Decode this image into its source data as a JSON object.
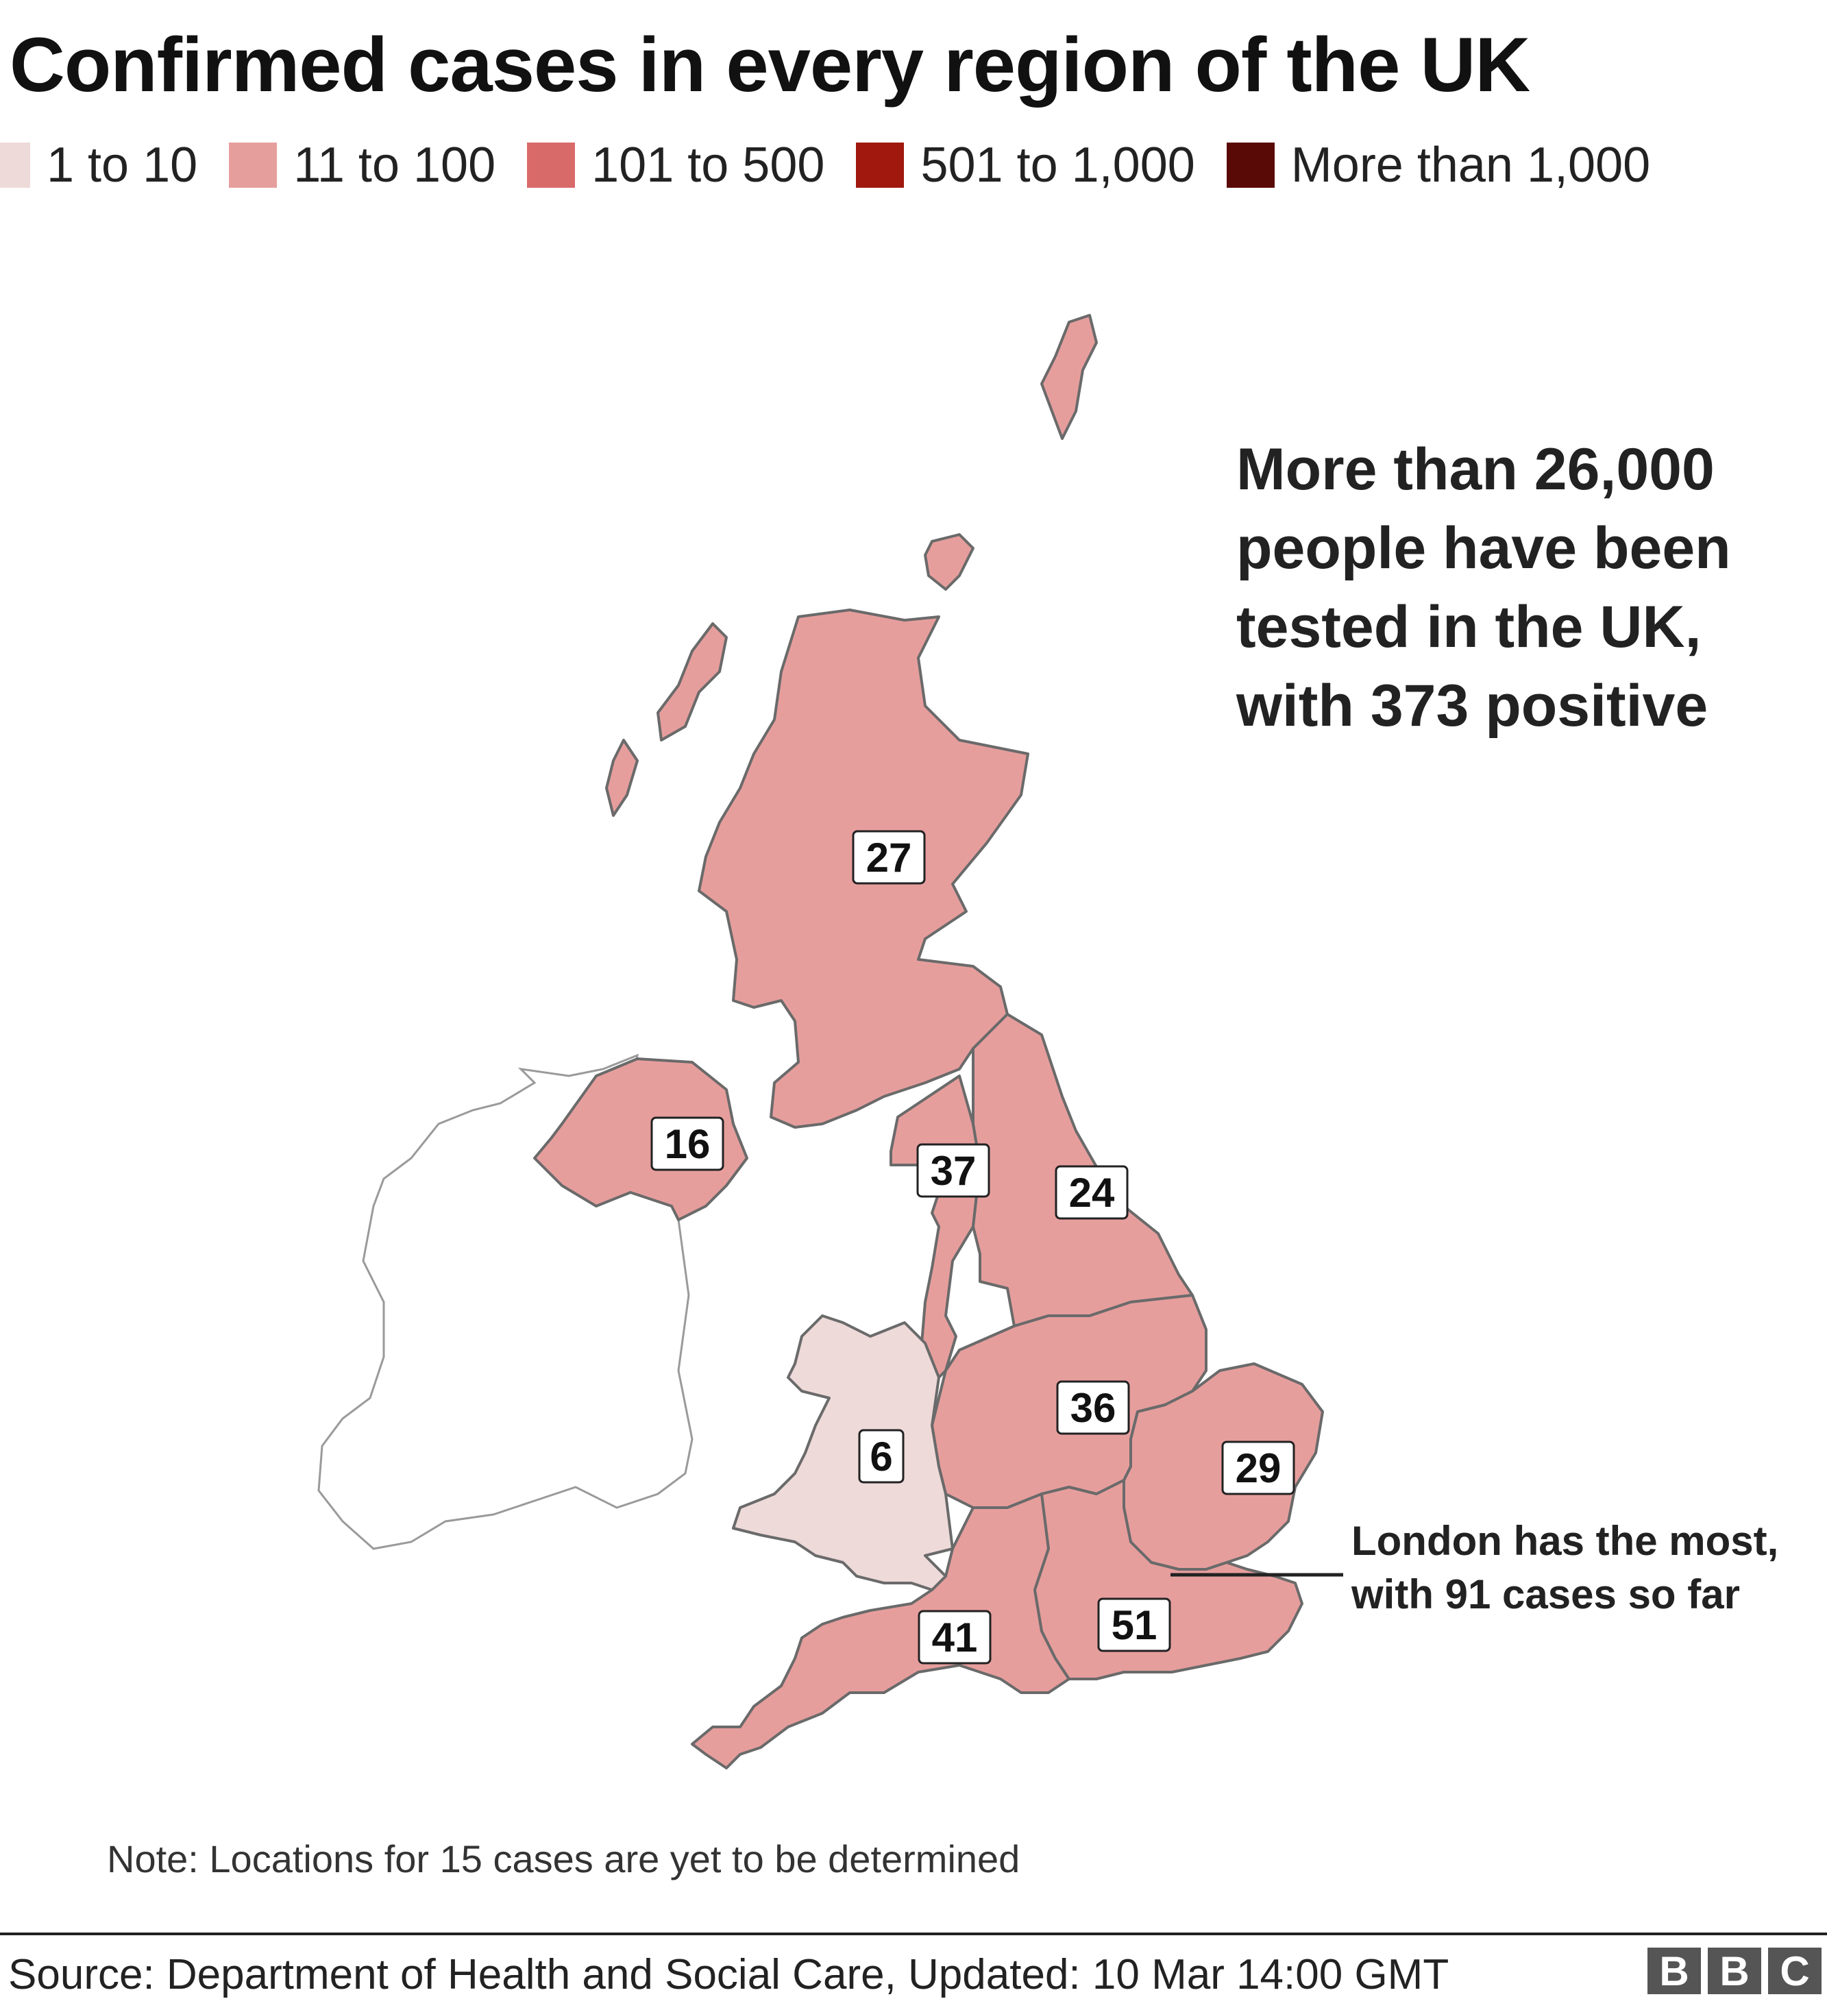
{
  "title": "Confirmed cases in every region of the UK",
  "legend": [
    {
      "label": "1 to 10",
      "color": "#eedad9"
    },
    {
      "label": "11 to 100",
      "color": "#e69e9d"
    },
    {
      "label": "101 to 500",
      "color": "#d96a6a"
    },
    {
      "label": "501 to 1,000",
      "color": "#a0180e"
    },
    {
      "label": "More than 1,000",
      "color": "#5a0a06"
    }
  ],
  "headline": "More than 26,000 people have been tested in the UK, with 373 positive",
  "callout": "London has the most, with 91 cases so far",
  "note": "Note: Locations for 15 cases are yet to be determined",
  "source": "Source: Department of Health and Social Care, Updated: 10 Mar 14:00 GMT",
  "logo": [
    "B",
    "B",
    "C"
  ],
  "regions": [
    {
      "name": "Scotland",
      "cases": "27",
      "band": "11 to 100",
      "color": "#e69e9d"
    },
    {
      "name": "Northern Ireland",
      "cases": "16",
      "band": "11 to 100",
      "color": "#e69e9d"
    },
    {
      "name": "North West",
      "cases": "37",
      "band": "11 to 100",
      "color": "#e69e9d"
    },
    {
      "name": "North East and Yorkshire",
      "cases": "24",
      "band": "11 to 100",
      "color": "#e69e9d"
    },
    {
      "name": "Midlands",
      "cases": "36",
      "band": "11 to 100",
      "color": "#e69e9d"
    },
    {
      "name": "East of England",
      "cases": "29",
      "band": "11 to 100",
      "color": "#e69e9d"
    },
    {
      "name": "Wales",
      "cases": "6",
      "band": "1 to 10",
      "color": "#eedad9"
    },
    {
      "name": "South West",
      "cases": "41",
      "band": "11 to 100",
      "color": "#e69e9d"
    },
    {
      "name": "South East",
      "cases": "51",
      "band": "11 to 100",
      "color": "#e69e9d"
    }
  ]
}
